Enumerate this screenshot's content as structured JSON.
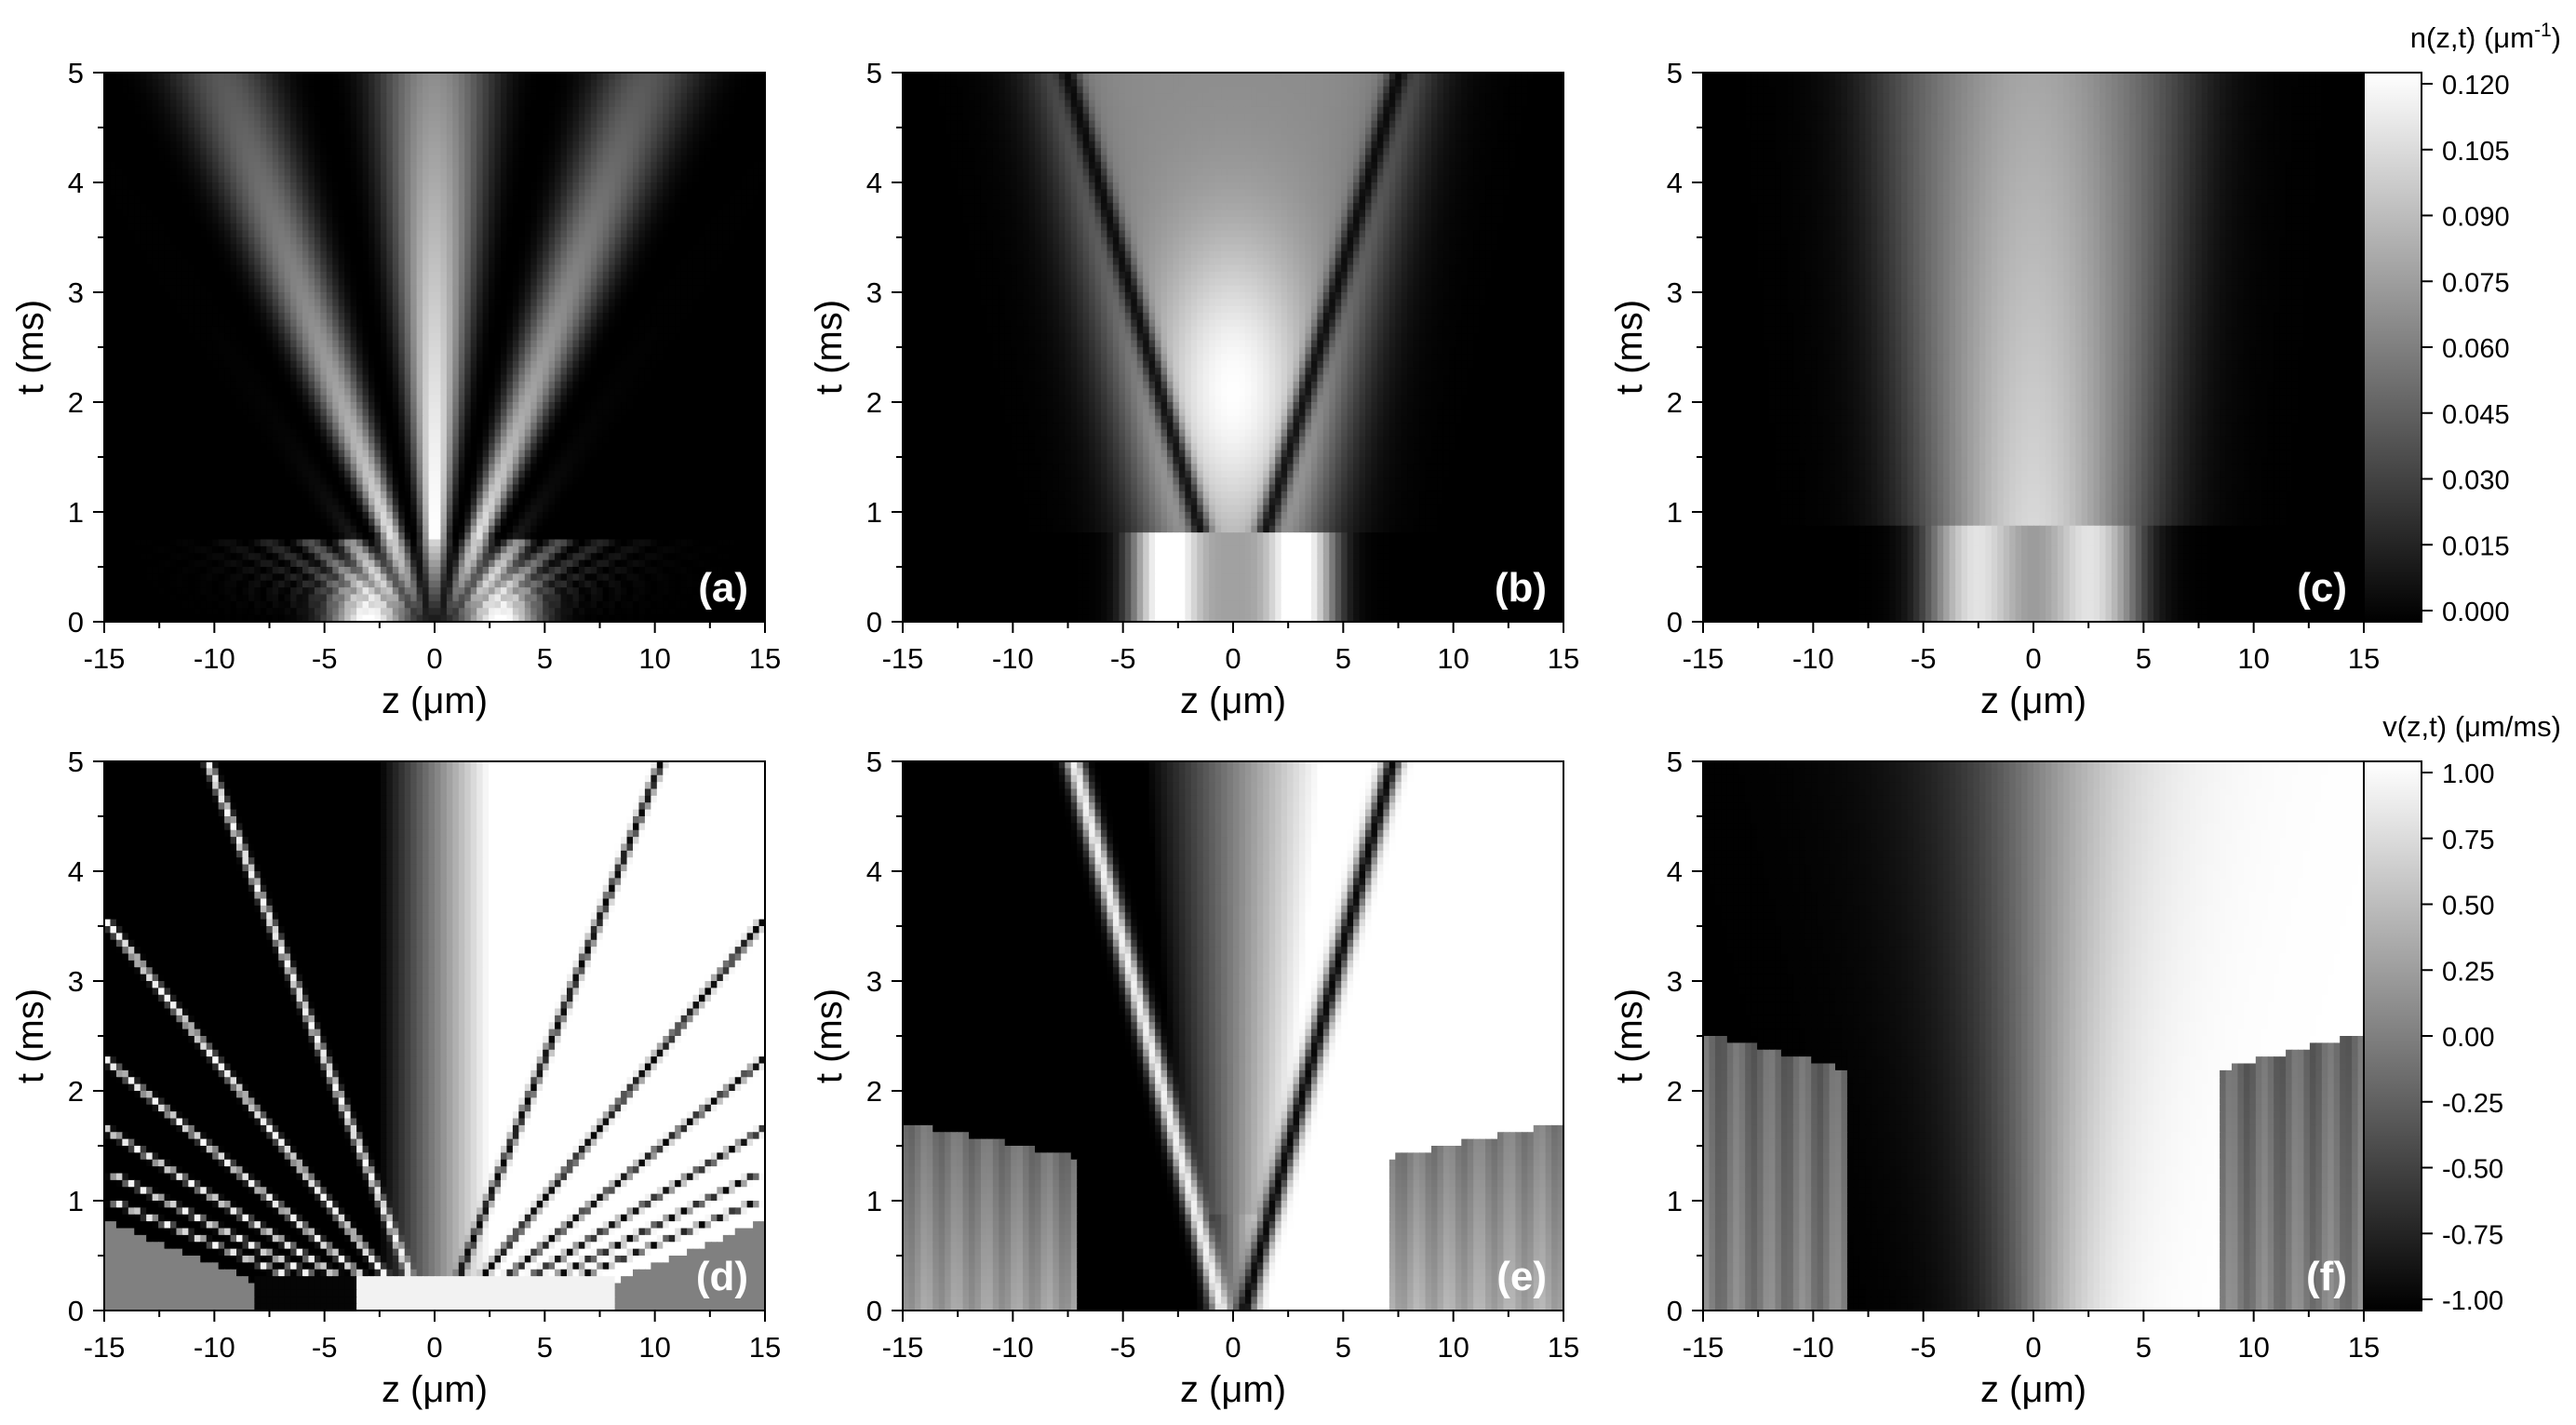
{
  "figure": {
    "colorbar_density": {
      "label": "n(z,t)",
      "unit": "(μm",
      "unit_exp": "-1",
      "unit_close": ")",
      "ticks": [
        "0.120",
        "0.105",
        "0.090",
        "0.075",
        "0.060",
        "0.045",
        "0.030",
        "0.015",
        "0.000"
      ]
    },
    "colorbar_velocity": {
      "label": "v(z,t)",
      "unit": "(μm/ms)",
      "ticks": [
        "1.00",
        "0.75",
        "0.50",
        "0.25",
        "0.00",
        "-0.25",
        "-0.50",
        "-0.75",
        "-1.00"
      ]
    }
  },
  "chart_data": [
    {
      "type": "heatmap",
      "panel_label": "(a)",
      "quantity": "n(z,t)",
      "xlabel": "z",
      "xunit": "(μm)",
      "ylabel": "t",
      "yunit": "(ms)",
      "xlim": [
        -15,
        15
      ],
      "ylim": [
        0,
        5
      ],
      "xticks": [
        "-15",
        "-10",
        "-5",
        "0",
        "5",
        "10",
        "15"
      ],
      "yticks": [
        "0",
        "1",
        "2",
        "3",
        "4",
        "5"
      ],
      "colormap": "grayscale",
      "zlim": [
        0.0,
        0.12
      ],
      "features": {
        "initial_peaks_z": [
          -3,
          3
        ],
        "fringe_count": 12
      }
    },
    {
      "type": "heatmap",
      "panel_label": "(b)",
      "quantity": "n(z,t)",
      "xlabel": "z",
      "xunit": "(μm)",
      "ylabel": "t",
      "yunit": "(ms)",
      "xlim": [
        -15,
        15
      ],
      "ylim": [
        0,
        5
      ],
      "xticks": [
        "-15",
        "-10",
        "-5",
        "0",
        "5",
        "10",
        "15"
      ],
      "yticks": [
        "0",
        "1",
        "2",
        "3",
        "4",
        "5"
      ],
      "colormap": "grayscale",
      "zlim": [
        0.0,
        0.12
      ],
      "features": {
        "initial_peaks_z": [
          -3,
          3
        ],
        "dark_solitons": [
          {
            "z_at_t5": -7.5
          },
          {
            "z_at_t5": 7.0
          }
        ]
      }
    },
    {
      "type": "heatmap",
      "panel_label": "(c)",
      "quantity": "n(z,t)",
      "xlabel": "z",
      "xunit": "(μm)",
      "ylabel": "t",
      "yunit": "(ms)",
      "xlim": [
        -15,
        15
      ],
      "ylim": [
        0,
        5
      ],
      "xticks": [
        "-15",
        "-10",
        "-5",
        "0",
        "5",
        "10",
        "15"
      ],
      "yticks": [
        "0",
        "1",
        "2",
        "3",
        "4",
        "5"
      ],
      "colormap": "grayscale",
      "zlim": [
        0.0,
        0.12
      ],
      "features": {
        "initial_peaks_z": [
          -3,
          3
        ],
        "spread_width_at_t5": 7.5
      }
    },
    {
      "type": "heatmap",
      "panel_label": "(d)",
      "quantity": "v(z,t)",
      "xlabel": "z",
      "xunit": "(μm)",
      "ylabel": "t",
      "yunit": "(ms)",
      "xlim": [
        -15,
        15
      ],
      "ylim": [
        0,
        5
      ],
      "xticks": [
        "-15",
        "-10",
        "-5",
        "0",
        "5",
        "10",
        "15"
      ],
      "yticks": [
        "0",
        "1",
        "2",
        "3",
        "4",
        "5"
      ],
      "colormap": "grayscale",
      "zlim": [
        -1.0,
        1.0
      ],
      "features": {
        "fringe_count": 12,
        "edge_wedge_z": 8.2
      }
    },
    {
      "type": "heatmap",
      "panel_label": "(e)",
      "quantity": "v(z,t)",
      "xlabel": "z",
      "xunit": "(μm)",
      "ylabel": "t",
      "yunit": "(ms)",
      "xlim": [
        -15,
        15
      ],
      "ylim": [
        0,
        5
      ],
      "xticks": [
        "-15",
        "-10",
        "-5",
        "0",
        "5",
        "10",
        "15"
      ],
      "yticks": [
        "0",
        "1",
        "2",
        "3",
        "4",
        "5"
      ],
      "colormap": "grayscale",
      "zlim": [
        -1.0,
        1.0
      ],
      "features": {
        "shock_front_t": 1.4,
        "shock_start_z": 7.2
      }
    },
    {
      "type": "heatmap",
      "panel_label": "(f)",
      "quantity": "v(z,t)",
      "xlabel": "z",
      "xunit": "(μm)",
      "ylabel": "t",
      "yunit": "(ms)",
      "xlim": [
        -15,
        15
      ],
      "ylim": [
        0,
        5
      ],
      "xticks": [
        "-15",
        "-10",
        "-5",
        "0",
        "5",
        "10",
        "15"
      ],
      "yticks": [
        "0",
        "1",
        "2",
        "3",
        "4",
        "5"
      ],
      "colormap": "grayscale",
      "zlim": [
        -1.0,
        1.0
      ],
      "features": {
        "shock_front_t": 2.3,
        "shock_start_z": 8.5
      }
    }
  ]
}
